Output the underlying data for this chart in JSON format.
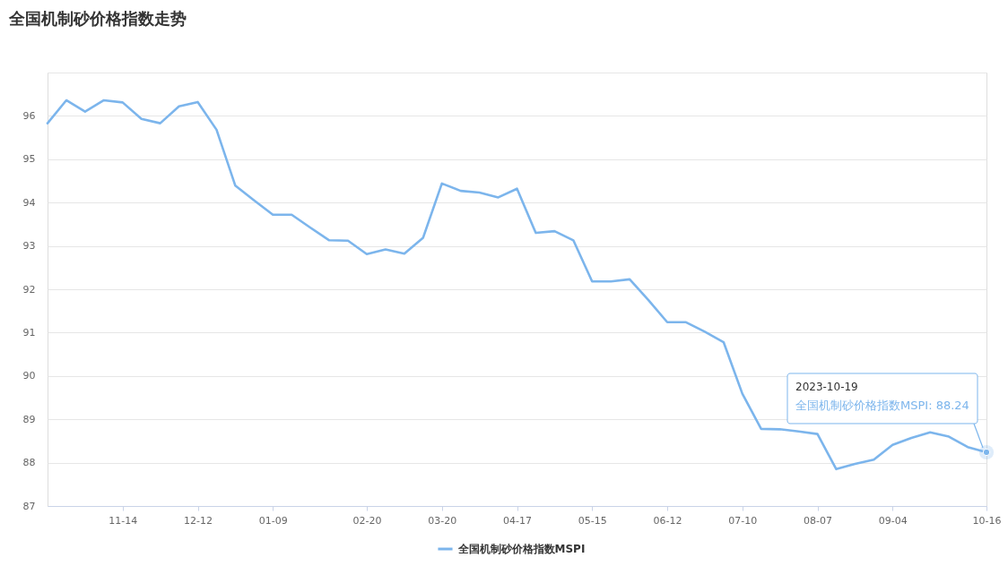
{
  "chart_data": {
    "type": "line",
    "title": "全国机制砂价格指数走势",
    "categories": [
      null,
      null,
      null,
      null,
      "11-14",
      null,
      null,
      null,
      "12-12",
      null,
      null,
      null,
      "01-09",
      null,
      null,
      null,
      null,
      "02-20",
      null,
      null,
      null,
      "03-20",
      null,
      null,
      null,
      "04-17",
      null,
      null,
      null,
      "05-15",
      null,
      null,
      null,
      "06-12",
      null,
      null,
      null,
      "07-10",
      null,
      null,
      null,
      "08-07",
      null,
      null,
      null,
      "09-04",
      null,
      null,
      null,
      null,
      "10-16"
    ],
    "series": [
      {
        "name": "全国机制砂价格指数MSPI",
        "color": "#7cb5ec",
        "values": [
          95.83,
          96.36,
          96.1,
          96.36,
          96.31,
          95.93,
          95.83,
          96.22,
          96.32,
          95.68,
          94.39,
          94.05,
          93.72,
          93.72,
          93.42,
          93.13,
          93.12,
          92.81,
          92.92,
          92.82,
          93.19,
          94.44,
          94.27,
          94.23,
          94.12,
          94.32,
          93.3,
          93.34,
          93.13,
          92.18,
          92.18,
          92.23,
          91.75,
          91.24,
          91.24,
          91.02,
          90.78,
          89.59,
          88.78,
          88.77,
          88.72,
          88.66,
          87.85,
          87.97,
          88.07,
          88.41,
          88.57,
          88.7,
          88.6,
          88.36,
          88.24
        ]
      }
    ],
    "ylim": [
      87,
      97
    ],
    "yticks": [
      87,
      88,
      89,
      90,
      91,
      92,
      93,
      94,
      95,
      96,
      {
        "value": 97,
        "label": null
      }
    ],
    "grid": "y",
    "legend": "bottom",
    "annotations": [
      {
        "text": "2023-10-19\n全国机制砂价格指数MSPI: 88.24",
        "x": "10-16",
        "y": 88.24
      }
    ]
  }
}
